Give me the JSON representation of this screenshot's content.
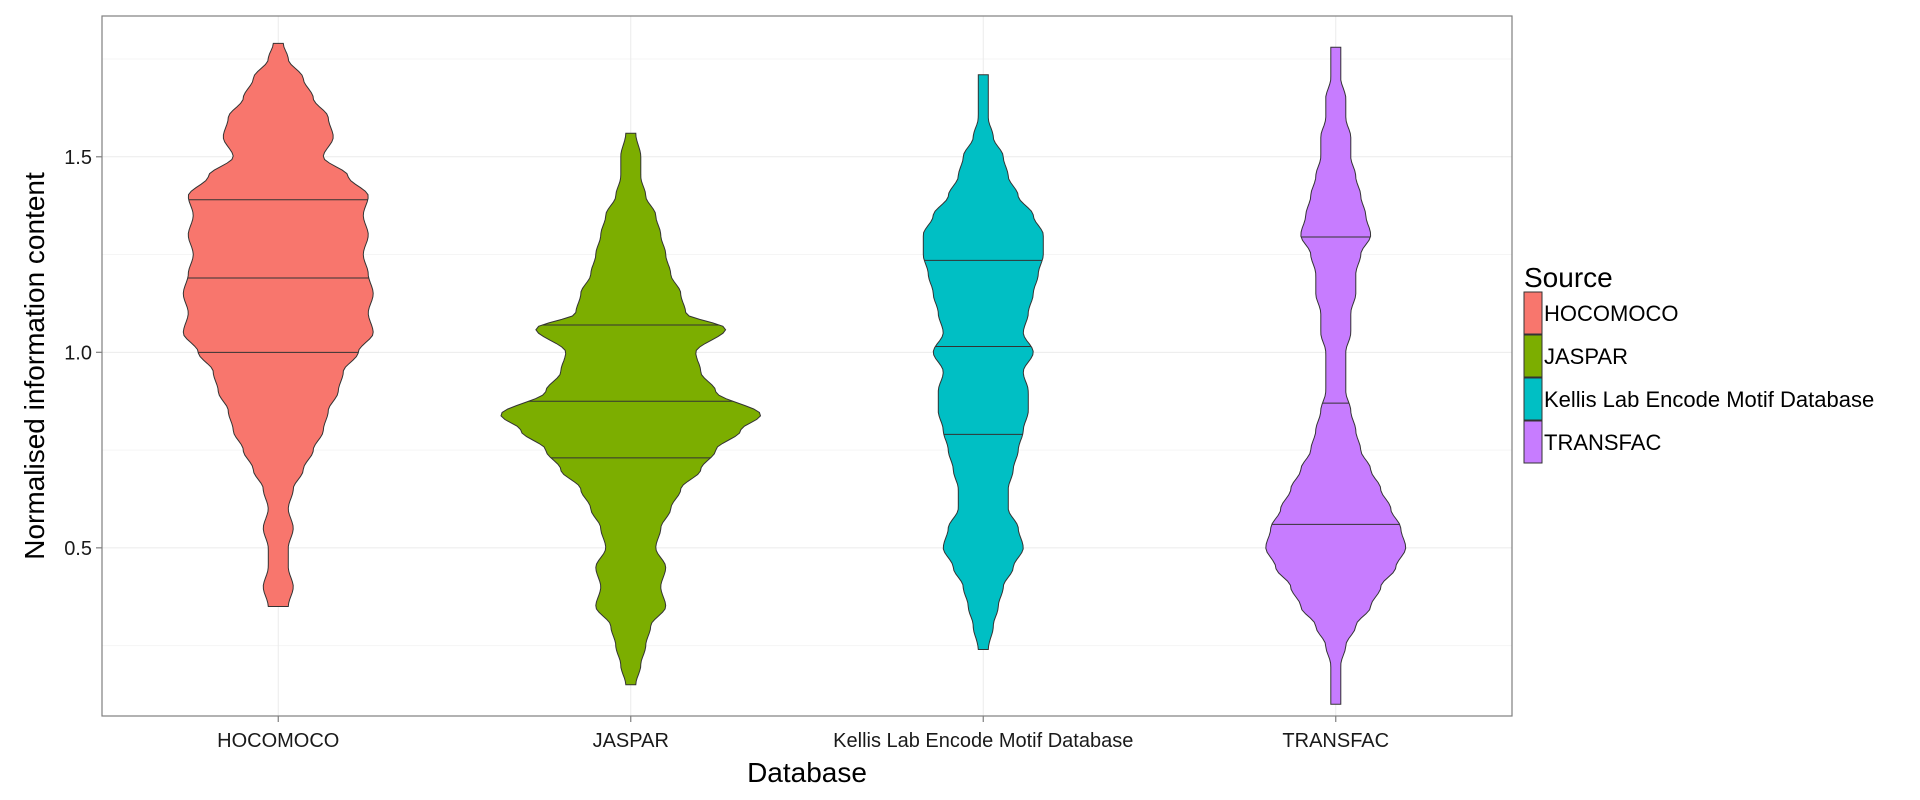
{
  "chart_data": {
    "type": "violin",
    "title": "",
    "xlabel": "Database",
    "ylabel": "Normalised information content",
    "ylim": [
      0.07,
      1.86
    ],
    "yticks": [
      0.5,
      1.0,
      1.5
    ],
    "ytick_labels": [
      "0.5",
      "1.0",
      "1.5"
    ],
    "categories": [
      "HOCOMOCO",
      "JASPAR",
      "Kellis Lab Encode Motif Database",
      "TRANSFAC"
    ],
    "grid": true,
    "legend": {
      "title": "Source",
      "position": "right",
      "entries": [
        "HOCOMOCO",
        "JASPAR",
        "Kellis Lab Encode Motif Database",
        "TRANSFAC"
      ]
    },
    "series": [
      {
        "name": "HOCOMOCO",
        "color": "#F8766D",
        "quantiles": [
          1.0,
          1.19,
          1.39
        ],
        "ymin": 0.35,
        "ymax": 1.79,
        "profile": [
          [
            0.35,
            0.02
          ],
          [
            0.4,
            0.03
          ],
          [
            0.45,
            0.02
          ],
          [
            0.5,
            0.02
          ],
          [
            0.55,
            0.03
          ],
          [
            0.6,
            0.02
          ],
          [
            0.65,
            0.03
          ],
          [
            0.7,
            0.05
          ],
          [
            0.75,
            0.07
          ],
          [
            0.8,
            0.09
          ],
          [
            0.85,
            0.1
          ],
          [
            0.9,
            0.12
          ],
          [
            0.95,
            0.13
          ],
          [
            1.0,
            0.16
          ],
          [
            1.05,
            0.19
          ],
          [
            1.1,
            0.18
          ],
          [
            1.15,
            0.19
          ],
          [
            1.2,
            0.18
          ],
          [
            1.25,
            0.17
          ],
          [
            1.3,
            0.18
          ],
          [
            1.35,
            0.17
          ],
          [
            1.4,
            0.18
          ],
          [
            1.45,
            0.14
          ],
          [
            1.5,
            0.09
          ],
          [
            1.55,
            0.11
          ],
          [
            1.6,
            0.1
          ],
          [
            1.65,
            0.07
          ],
          [
            1.7,
            0.05
          ],
          [
            1.75,
            0.02
          ],
          [
            1.79,
            0.01
          ]
        ]
      },
      {
        "name": "JASPAR",
        "color": "#7CAE00",
        "quantiles": [
          0.73,
          0.875,
          1.07
        ],
        "ymin": 0.15,
        "ymax": 1.56,
        "profile": [
          [
            0.15,
            0.01
          ],
          [
            0.2,
            0.02
          ],
          [
            0.25,
            0.03
          ],
          [
            0.3,
            0.04
          ],
          [
            0.35,
            0.07
          ],
          [
            0.4,
            0.06
          ],
          [
            0.45,
            0.07
          ],
          [
            0.5,
            0.05
          ],
          [
            0.55,
            0.06
          ],
          [
            0.6,
            0.08
          ],
          [
            0.65,
            0.1
          ],
          [
            0.7,
            0.14
          ],
          [
            0.75,
            0.17
          ],
          [
            0.8,
            0.22
          ],
          [
            0.84,
            0.26
          ],
          [
            0.9,
            0.17
          ],
          [
            0.95,
            0.14
          ],
          [
            1.0,
            0.13
          ],
          [
            1.06,
            0.19
          ],
          [
            1.1,
            0.11
          ],
          [
            1.15,
            0.1
          ],
          [
            1.2,
            0.08
          ],
          [
            1.25,
            0.07
          ],
          [
            1.3,
            0.06
          ],
          [
            1.35,
            0.05
          ],
          [
            1.4,
            0.03
          ],
          [
            1.45,
            0.02
          ],
          [
            1.5,
            0.02
          ],
          [
            1.56,
            0.01
          ]
        ]
      },
      {
        "name": "Kellis Lab Encode Motif Database",
        "color": "#00BFC4",
        "quantiles": [
          0.79,
          1.015,
          1.235
        ],
        "ymin": 0.24,
        "ymax": 1.71,
        "profile": [
          [
            0.24,
            0.01
          ],
          [
            0.3,
            0.02
          ],
          [
            0.35,
            0.03
          ],
          [
            0.4,
            0.04
          ],
          [
            0.45,
            0.06
          ],
          [
            0.5,
            0.08
          ],
          [
            0.55,
            0.07
          ],
          [
            0.6,
            0.05
          ],
          [
            0.65,
            0.05
          ],
          [
            0.7,
            0.06
          ],
          [
            0.75,
            0.07
          ],
          [
            0.8,
            0.08
          ],
          [
            0.85,
            0.09
          ],
          [
            0.9,
            0.09
          ],
          [
            0.95,
            0.08
          ],
          [
            1.0,
            0.1
          ],
          [
            1.05,
            0.08
          ],
          [
            1.1,
            0.09
          ],
          [
            1.15,
            0.1
          ],
          [
            1.2,
            0.11
          ],
          [
            1.25,
            0.12
          ],
          [
            1.3,
            0.12
          ],
          [
            1.35,
            0.1
          ],
          [
            1.4,
            0.07
          ],
          [
            1.45,
            0.05
          ],
          [
            1.5,
            0.04
          ],
          [
            1.55,
            0.02
          ],
          [
            1.6,
            0.01
          ],
          [
            1.65,
            0.01
          ],
          [
            1.71,
            0.01
          ]
        ]
      },
      {
        "name": "TRANSFAC",
        "color": "#C77CFF",
        "quantiles": [
          0.56,
          0.87,
          1.295
        ],
        "ymin": 0.1,
        "ymax": 1.78,
        "profile": [
          [
            0.1,
            0.01
          ],
          [
            0.2,
            0.01
          ],
          [
            0.25,
            0.02
          ],
          [
            0.3,
            0.04
          ],
          [
            0.35,
            0.07
          ],
          [
            0.4,
            0.09
          ],
          [
            0.45,
            0.12
          ],
          [
            0.5,
            0.14
          ],
          [
            0.55,
            0.13
          ],
          [
            0.6,
            0.11
          ],
          [
            0.65,
            0.09
          ],
          [
            0.7,
            0.07
          ],
          [
            0.75,
            0.05
          ],
          [
            0.8,
            0.04
          ],
          [
            0.85,
            0.03
          ],
          [
            0.9,
            0.02
          ],
          [
            0.95,
            0.02
          ],
          [
            1.0,
            0.02
          ],
          [
            1.05,
            0.03
          ],
          [
            1.1,
            0.03
          ],
          [
            1.15,
            0.04
          ],
          [
            1.2,
            0.04
          ],
          [
            1.25,
            0.05
          ],
          [
            1.3,
            0.07
          ],
          [
            1.35,
            0.06
          ],
          [
            1.4,
            0.05
          ],
          [
            1.45,
            0.04
          ],
          [
            1.5,
            0.03
          ],
          [
            1.55,
            0.03
          ],
          [
            1.6,
            0.02
          ],
          [
            1.65,
            0.02
          ],
          [
            1.7,
            0.01
          ],
          [
            1.78,
            0.01
          ]
        ]
      }
    ]
  }
}
